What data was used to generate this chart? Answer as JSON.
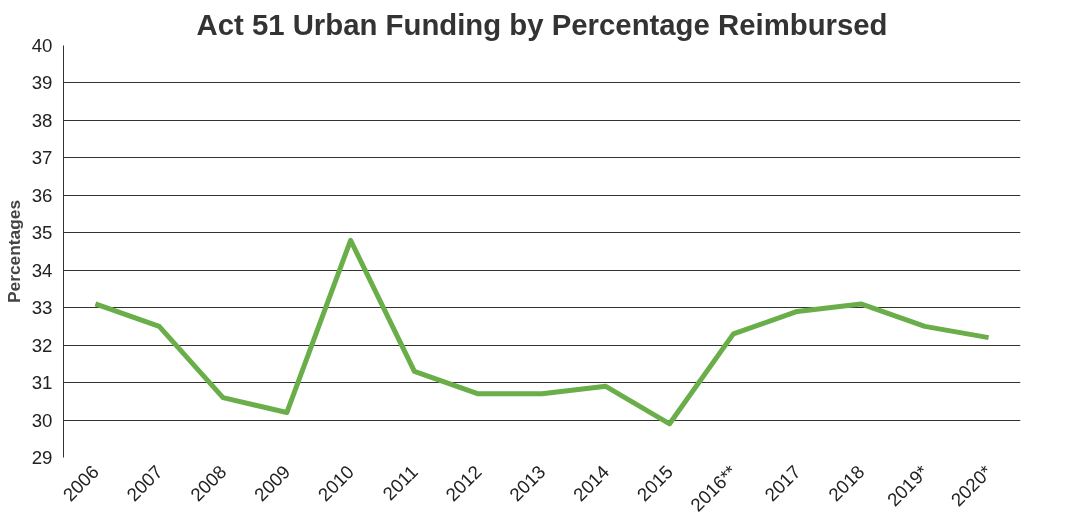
{
  "chart_data": {
    "type": "line",
    "title": "Act 51 Urban Funding by Percentage Reimbursed",
    "ylabel": "Percentages",
    "categories": [
      "2006",
      "2007",
      "2008",
      "2009",
      "2010",
      "2011",
      "2012",
      "2013",
      "2014",
      "2015",
      "2016**",
      "2017",
      "2018",
      "2019*",
      "2020*"
    ],
    "series": [
      {
        "color": "#6aae4a",
        "values": [
          33.1,
          32.5,
          30.6,
          30.2,
          34.8,
          31.3,
          30.7,
          30.7,
          30.9,
          29.9,
          32.3,
          32.9,
          33.1,
          32.5,
          32.2
        ]
      }
    ],
    "ylim": [
      29,
      40
    ],
    "yticks": [
      29,
      30,
      31,
      32,
      33,
      34,
      35,
      36,
      37,
      38,
      39,
      40
    ],
    "grid": "y",
    "marker": "none",
    "line_style": "solid"
  }
}
